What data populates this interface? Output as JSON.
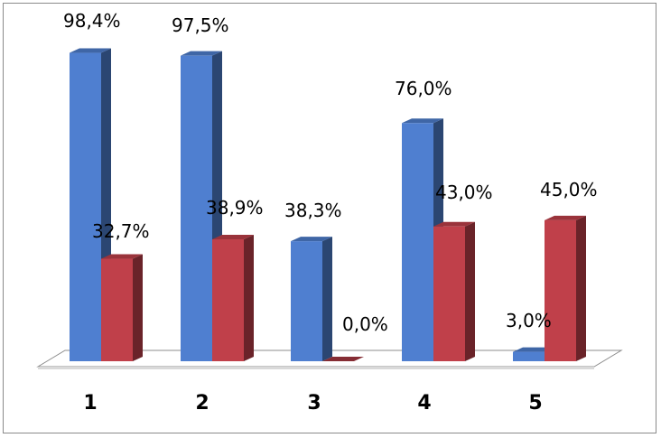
{
  "chart_data": {
    "type": "bar",
    "categories": [
      "1",
      "2",
      "3",
      "4",
      "5"
    ],
    "series": [
      {
        "values": [
          98.4,
          97.5,
          38.3,
          76.0,
          3.0
        ],
        "labels": [
          "98,4%",
          "97,5%",
          "38,3%",
          "76,0%",
          "3,0%"
        ],
        "color": "#4f7fd0"
      },
      {
        "values": [
          32.7,
          38.9,
          0.0,
          43.0,
          45.0
        ],
        "labels": [
          "32,7%",
          "38,9%",
          "0,0%",
          "43,0%",
          "45,0%"
        ],
        "color": "#c0404a"
      }
    ],
    "ylim": [
      0,
      100
    ],
    "grid": false,
    "legend": "none",
    "three_d": true
  }
}
